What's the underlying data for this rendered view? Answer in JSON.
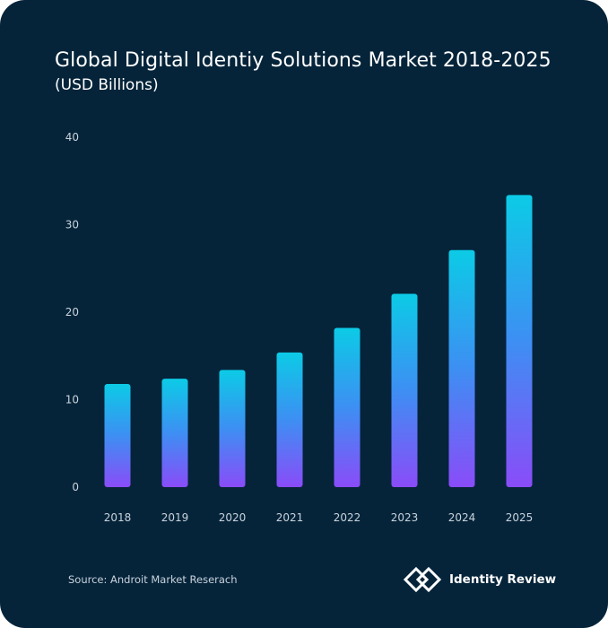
{
  "header": {
    "title": "Global Digital Identiy Solutions Market 2018-2025",
    "subtitle": "(USD Billions)"
  },
  "footer": {
    "source": "Source: Androit Market Reserach",
    "brand": "Identity Review",
    "brand_logo_icon": "interlocked-diamonds-icon"
  },
  "colors": {
    "background": "#05243a",
    "bar_top": "#0ccbe6",
    "bar_mid": "#3d8ff3",
    "bar_bottom": "#8a4cf8",
    "axis_text": "#c9d3dc"
  },
  "chart_data": {
    "type": "bar",
    "categories": [
      "2018",
      "2019",
      "2020",
      "2021",
      "2022",
      "2023",
      "2024",
      "2025"
    ],
    "values": [
      11.8,
      12.4,
      13.4,
      15.4,
      18.2,
      22.1,
      27.1,
      33.4
    ],
    "ylim": [
      0,
      40
    ],
    "yticks": [
      "0",
      "10",
      "20",
      "30",
      "40"
    ],
    "grid": false,
    "legend": "none"
  }
}
